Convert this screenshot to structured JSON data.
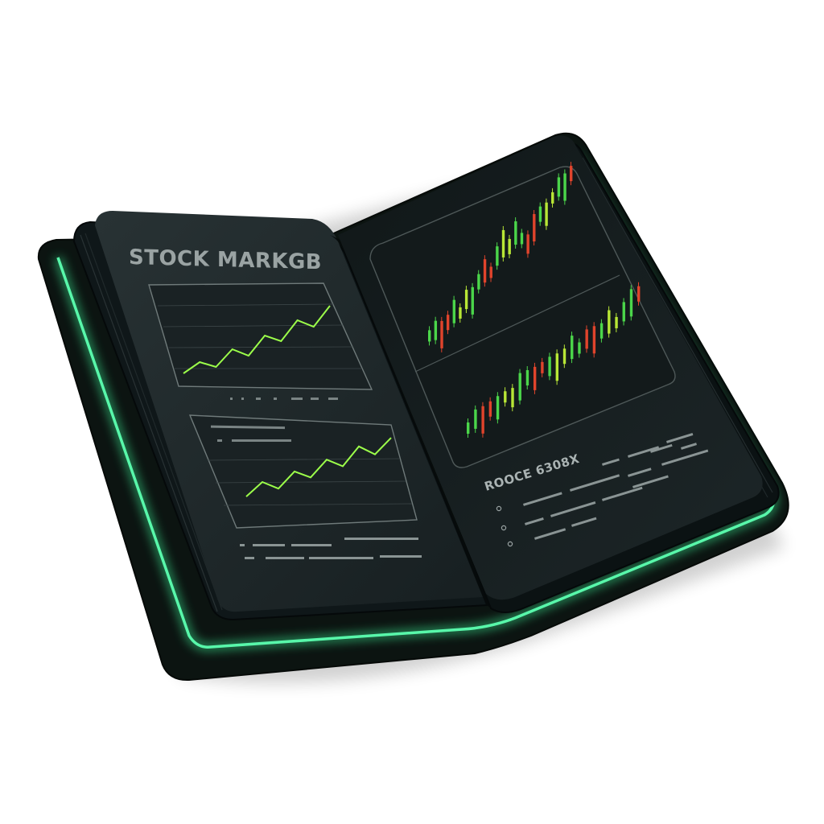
{
  "left_page": {
    "heading": "STOCK MARKGB",
    "chart_1": {
      "type": "line",
      "trend": [
        0.08,
        0.22,
        0.16,
        0.38,
        0.3,
        0.55,
        0.48,
        0.74,
        0.66,
        0.92
      ]
    },
    "chart_2": {
      "type": "line",
      "trend": [
        0.06,
        0.28,
        0.18,
        0.44,
        0.35,
        0.62,
        0.52,
        0.82,
        0.7,
        0.95
      ]
    }
  },
  "right_page": {
    "heading": "ROOCE 6308X",
    "candles_upper": {
      "type": "candlestick",
      "trend": [
        0.18,
        0.2,
        0.15,
        0.22,
        0.28,
        0.25,
        0.33,
        0.3,
        0.42,
        0.48,
        0.45,
        0.55,
        0.62,
        0.58,
        0.66,
        0.6,
        0.54,
        0.64,
        0.72,
        0.7,
        0.8,
        0.86,
        0.84,
        0.92
      ]
    },
    "candles_lower": {
      "type": "candlestick",
      "trend": [
        0.2,
        0.26,
        0.22,
        0.3,
        0.28,
        0.36,
        0.32,
        0.4,
        0.46,
        0.42,
        0.5,
        0.48,
        0.44,
        0.52,
        0.58,
        0.54,
        0.6,
        0.56,
        0.62,
        0.68,
        0.64,
        0.72,
        0.78,
        0.84
      ]
    },
    "bullet_count": 3
  },
  "colors": {
    "cover": "#0d1512",
    "glow": "#3df59a",
    "page": "#1c2426",
    "page_right": "#161d1f",
    "chart_frame": "#6f7a7a",
    "line": "#9cff4a",
    "candle_green": "#4bd64a",
    "candle_lime": "#b8e636",
    "candle_red": "#e0442c",
    "text": "#9aa3a3"
  }
}
